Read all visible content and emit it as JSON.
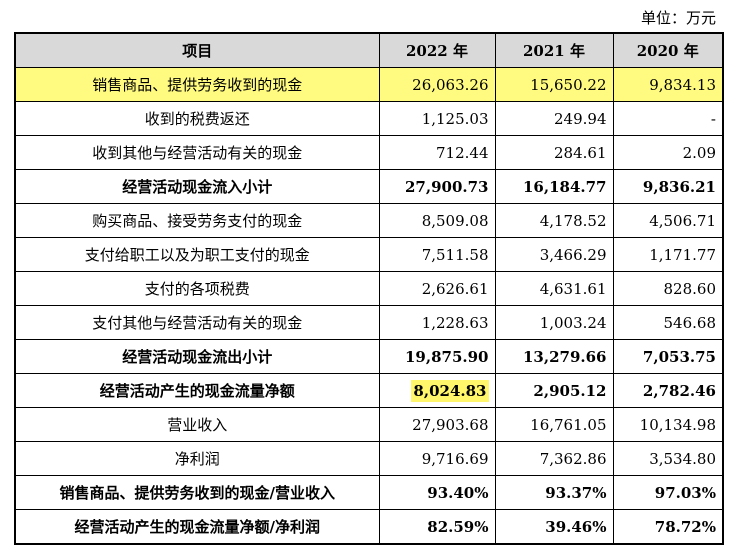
{
  "unit_label": "单位：万元",
  "header": {
    "item": "项目",
    "years": [
      "2022 年",
      "2021 年",
      "2020 年"
    ]
  },
  "rows": [
    {
      "label": "销售商品、提供劳务收到的现金",
      "values": [
        "26,063.26",
        "15,650.22",
        "9,834.13"
      ]
    },
    {
      "label": "收到的税费返还",
      "values": [
        "1,125.03",
        "249.94",
        "-"
      ]
    },
    {
      "label": "收到其他与经营活动有关的现金",
      "values": [
        "712.44",
        "284.61",
        "2.09"
      ]
    },
    {
      "label": "经营活动现金流入小计",
      "values": [
        "27,900.73",
        "16,184.77",
        "9,836.21"
      ]
    },
    {
      "label": "购买商品、接受劳务支付的现金",
      "values": [
        "8,509.08",
        "4,178.52",
        "4,506.71"
      ]
    },
    {
      "label": "支付给职工以及为职工支付的现金",
      "values": [
        "7,511.58",
        "3,466.29",
        "1,171.77"
      ]
    },
    {
      "label": "支付的各项税费",
      "values": [
        "2,626.61",
        "4,631.61",
        "828.60"
      ]
    },
    {
      "label": "支付其他与经营活动有关的现金",
      "values": [
        "1,228.63",
        "1,003.24",
        "546.68"
      ]
    },
    {
      "label": "经营活动现金流出小计",
      "values": [
        "19,875.90",
        "13,279.66",
        "7,053.75"
      ]
    },
    {
      "label": "经营活动产生的现金流量净额",
      "values": [
        "8,024.83",
        "2,905.12",
        "2,782.46"
      ]
    },
    {
      "label": "营业收入",
      "values": [
        "27,903.68",
        "16,761.05",
        "10,134.98"
      ]
    },
    {
      "label": "净利润",
      "values": [
        "9,716.69",
        "7,362.86",
        "3,534.80"
      ]
    },
    {
      "label": "销售商品、提供劳务收到的现金/营业收入",
      "values": [
        "93.40%",
        "93.37%",
        "97.03%"
      ]
    },
    {
      "label": "经营活动产生的现金流量净额/净利润",
      "values": [
        "82.59%",
        "39.46%",
        "78.72%"
      ]
    }
  ],
  "colors": {
    "highlight": "#fff66b",
    "header_bg": "#d9d9d9"
  }
}
